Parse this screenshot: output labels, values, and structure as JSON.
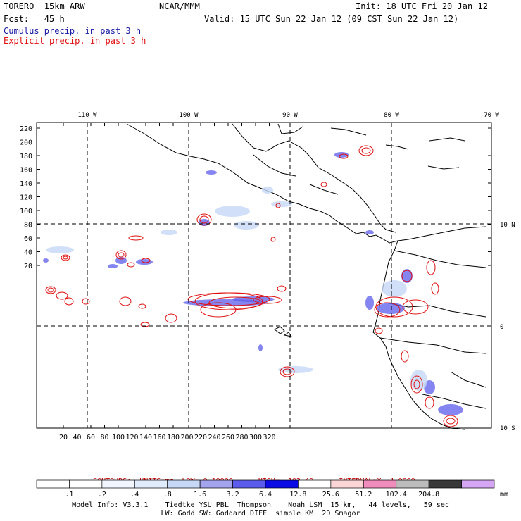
{
  "header": {
    "model": "TORERO  15km ARW",
    "center": "NCAR/MMM",
    "init": "Init: 18 UTC Fri 20 Jan 12",
    "fcst": "Fcst:   45 h",
    "valid": "Valid: 15 UTC Sun 22 Jan 12 (09 CST Sun 22 Jan 12)",
    "line1": "Cumulus precip. in past 3 h",
    "line2": "Explicit precip. in past 3 h",
    "line1_color": "#1a1aa6",
    "line2_color": "#e01010"
  },
  "map": {
    "top_lon_labels": [
      "110 W",
      "100 W",
      "90 W",
      "80 W",
      "70 W"
    ],
    "right_lat_labels": [
      "10 N",
      "0",
      "10 S"
    ],
    "y_ticks": [
      "220",
      "200",
      "180",
      "160",
      "140",
      "120",
      "100",
      "80",
      "60",
      "40",
      "20"
    ],
    "x_ticks": [
      "20",
      "40",
      "60",
      "80",
      "100",
      "120",
      "140",
      "160",
      "180",
      "200",
      "220",
      "240",
      "260",
      "280",
      "300",
      "320"
    ],
    "grid_style": "dashed",
    "contour_color": "#e01010",
    "cumulus_color": "#3333dd"
  },
  "contours": {
    "label": "CONTOURS:",
    "units": "UNITS=mm",
    "low": "LOW= 0.10000",
    "high": "HIGH=  102.40",
    "interval": "INTERVAL=X  4.0000",
    "color": "#cc0000"
  },
  "colorbar": {
    "labels": [
      ".1",
      ".2",
      ".4",
      ".8",
      "1.6",
      "3.2",
      "6.4",
      "12.8",
      "25.6",
      "51.2",
      "102.4",
      "204.8"
    ],
    "unit": "mm",
    "colors": [
      "#ffffff",
      "#ffffff",
      "#f2f7ff",
      "#e0ecfc",
      "#c6d8f6",
      "#a4a4ee",
      "#5c5cec",
      "#0b0be6",
      "#ffffff",
      "#fcd6d6",
      "#f08cbc",
      "#bcbcbc",
      "#383838",
      "#d4a6f4"
    ]
  },
  "footer": {
    "line1": "Model Info: V3.3.1    Tiedtke YSU PBL  Thompson    Noah LSM  15 km,   44 levels,   59 sec",
    "line2": "LW: Godd SW: Goddard DIFF  simple KM  2D Smagor"
  }
}
